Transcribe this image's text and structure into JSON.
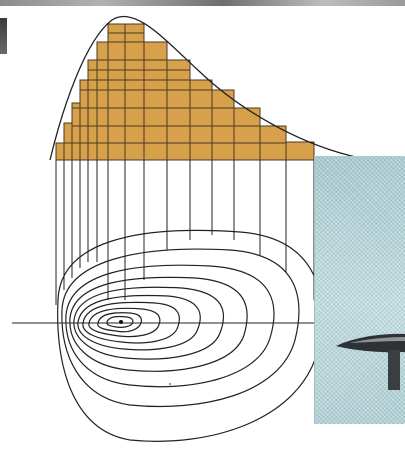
{
  "diagram": {
    "kind": "bivariate histogram with contour projection",
    "bar_fill": "#d7a04a",
    "bar_stroke": "#4a3a22",
    "line_color": "#222222",
    "photo_color": "#b6d3d7"
  }
}
